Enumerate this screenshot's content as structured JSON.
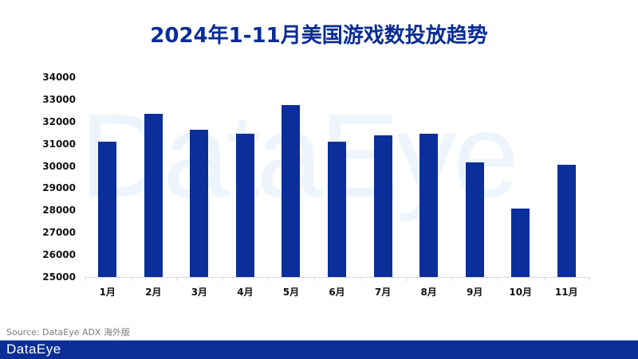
{
  "title": "2024年1-11月美国游戏数投放趋势",
  "watermark": "DataEye",
  "source": "Source: DataEye ADX 海外版",
  "footer": {
    "logo": "DataEye"
  },
  "colors": {
    "bar": "#0a2e9a",
    "title": "#0a2d96",
    "footer": "#0a2e96",
    "watermark": "#eef4fc"
  },
  "chart_data": {
    "type": "bar",
    "title": "2024年1-11月美国游戏数投放趋势",
    "xlabel": "",
    "ylabel": "",
    "categories": [
      "1月",
      "2月",
      "3月",
      "4月",
      "5月",
      "6月",
      "7月",
      "8月",
      "9月",
      "10月",
      "11月"
    ],
    "values": [
      31100,
      32350,
      31620,
      31450,
      32750,
      31090,
      31390,
      31440,
      30180,
      28080,
      30060
    ],
    "ylim": [
      25000,
      34000
    ],
    "yticks": [
      "34000",
      "33000",
      "32000",
      "31000",
      "30000",
      "29000",
      "28000",
      "27000",
      "26000",
      "25000"
    ],
    "grid": false,
    "legend": null
  }
}
